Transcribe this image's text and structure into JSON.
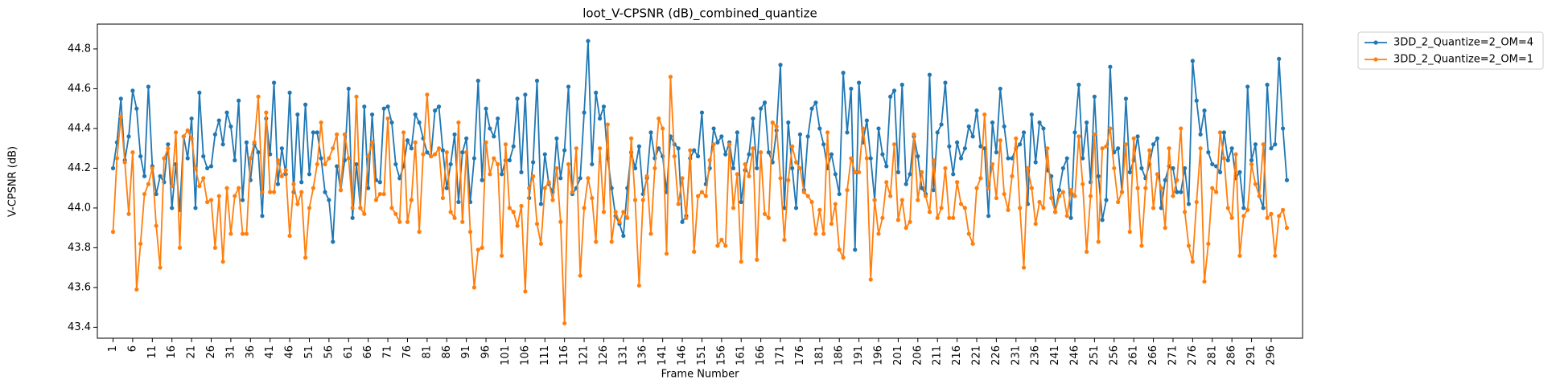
{
  "chart_data": {
    "type": "line",
    "title": "loot_V-CPSNR (dB)_combined_quantize",
    "x_label": "Frame Number",
    "y_label": "V-CPSNR (dB)",
    "legend": "outside upper right",
    "x": [
      1,
      2,
      3,
      4,
      5,
      6,
      7,
      8,
      9,
      10,
      11,
      12,
      13,
      14,
      15,
      16,
      17,
      18,
      19,
      20,
      21,
      22,
      23,
      24,
      25,
      26,
      27,
      28,
      29,
      30,
      31,
      32,
      33,
      34,
      35,
      36,
      37,
      38,
      39,
      40,
      41,
      42,
      43,
      44,
      45,
      46,
      47,
      48,
      49,
      50,
      51,
      52,
      53,
      54,
      55,
      56,
      57,
      58,
      59,
      60,
      61,
      62,
      63,
      64,
      65,
      66,
      67,
      68,
      69,
      70,
      71,
      72,
      73,
      74,
      75,
      76,
      77,
      78,
      79,
      80,
      81,
      82,
      83,
      84,
      85,
      86,
      87,
      88,
      89,
      90,
      91,
      92,
      93,
      94,
      95,
      96,
      97,
      98,
      99,
      100,
      101,
      102,
      103,
      104,
      105,
      106,
      107,
      108,
      109,
      110,
      111,
      112,
      113,
      114,
      115,
      116,
      117,
      118,
      119,
      120,
      121,
      122,
      123,
      124,
      125,
      126,
      127,
      128,
      129,
      130,
      131,
      132,
      133,
      134,
      135,
      136,
      137,
      138,
      139,
      140,
      141,
      142,
      143,
      144,
      145,
      146,
      147,
      148,
      149,
      150,
      151,
      152,
      153,
      154,
      155,
      156,
      157,
      158,
      159,
      160,
      161,
      162,
      163,
      164,
      165,
      166,
      167,
      168,
      169,
      170,
      171,
      172,
      173,
      174,
      175,
      176,
      177,
      178,
      179,
      180,
      181,
      182,
      183,
      184,
      185,
      186,
      187,
      188,
      189,
      190,
      191,
      192,
      193,
      194,
      195,
      196,
      197,
      198,
      199,
      200,
      201,
      202,
      203,
      204,
      205,
      206,
      207,
      208,
      209,
      210,
      211,
      212,
      213,
      214,
      215,
      216,
      217,
      218,
      219,
      220,
      221,
      222,
      223,
      224,
      225,
      226,
      227,
      228,
      229,
      230,
      231,
      232,
      233,
      234,
      235,
      236,
      237,
      238,
      239,
      240,
      241,
      242,
      243,
      244,
      245,
      246,
      247,
      248,
      249,
      250,
      251,
      252,
      253,
      254,
      255,
      256,
      257,
      258,
      259,
      260,
      261,
      262,
      263,
      264,
      265,
      266,
      267,
      268,
      269,
      270,
      271,
      272,
      273,
      274,
      275,
      276,
      277,
      278,
      279,
      280,
      281,
      282,
      283,
      284,
      285,
      286,
      287,
      288,
      289,
      290,
      291,
      292,
      293,
      294,
      295,
      296,
      297,
      298,
      299,
      300
    ],
    "xlim": [
      -3,
      304
    ],
    "xticks": [
      1,
      6,
      11,
      16,
      21,
      26,
      31,
      36,
      41,
      46,
      51,
      56,
      61,
      66,
      71,
      76,
      81,
      86,
      91,
      96,
      101,
      106,
      111,
      116,
      121,
      126,
      131,
      136,
      141,
      146,
      151,
      156,
      161,
      166,
      171,
      176,
      181,
      186,
      191,
      196,
      201,
      206,
      211,
      216,
      221,
      226,
      231,
      236,
      241,
      246,
      251,
      256,
      261,
      266,
      271,
      276,
      281,
      286,
      291,
      296
    ],
    "ylim": [
      43.345,
      44.925
    ],
    "yticks": [
      43.4,
      43.6,
      43.8,
      {
        "value": 44,
        "label": "44.0"
      },
      44.2,
      44.4,
      44.6,
      44.8
    ],
    "series": [
      {
        "name": "3DD_2_Quantize=2_OM=4",
        "color": "#1f77b4",
        "values": [
          44.2,
          44.33,
          44.55,
          44.24,
          44.36,
          44.59,
          44.5,
          44.26,
          44.16,
          44.61,
          44.21,
          44.07,
          44.16,
          44.13,
          44.32,
          44.0,
          44.22,
          43.99,
          44.36,
          44.25,
          44.45,
          44.0,
          44.58,
          44.26,
          44.2,
          44.21,
          44.37,
          44.44,
          44.32,
          44.48,
          44.41,
          44.24,
          44.54,
          44.04,
          44.33,
          44.14,
          44.32,
          44.28,
          43.96,
          44.45,
          44.27,
          44.63,
          44.12,
          44.3,
          44.17,
          44.58,
          44.08,
          44.47,
          44.13,
          44.52,
          44.17,
          44.38,
          44.38,
          44.25,
          44.08,
          44.04,
          43.83,
          44.21,
          44.09,
          44.24,
          44.6,
          43.95,
          44.22,
          44.0,
          44.51,
          44.1,
          44.47,
          44.14,
          44.13,
          44.5,
          44.51,
          44.43,
          44.22,
          44.15,
          44.21,
          44.34,
          44.3,
          44.47,
          44.43,
          44.35,
          44.28,
          44.26,
          44.49,
          44.51,
          44.29,
          44.1,
          44.22,
          44.37,
          44.03,
          44.28,
          44.35,
          44.03,
          44.25,
          44.64,
          44.14,
          44.5,
          44.4,
          44.36,
          44.45,
          44.17,
          44.24,
          44.24,
          44.31,
          44.55,
          44.18,
          44.57,
          44.05,
          44.23,
          44.64,
          44.02,
          44.27,
          44.12,
          44.08,
          44.35,
          44.15,
          44.29,
          44.61,
          44.07,
          44.1,
          44.15,
          44.48,
          44.84,
          44.22,
          44.58,
          44.45,
          44.51,
          44.25,
          44.1,
          43.96,
          43.92,
          43.86,
          44.1,
          44.28,
          44.2,
          44.31,
          44.07,
          44.15,
          44.38,
          44.25,
          44.3,
          44.26,
          44.08,
          44.36,
          44.32,
          44.3,
          43.93,
          43.96,
          44.25,
          44.29,
          44.26,
          44.48,
          44.12,
          44.2,
          44.4,
          44.33,
          44.36,
          44.27,
          44.33,
          44.2,
          44.38,
          44.03,
          44.19,
          44.27,
          44.45,
          44.2,
          44.5,
          44.53,
          44.28,
          44.23,
          44.39,
          44.72,
          44.0,
          44.43,
          44.2,
          44.0,
          44.37,
          44.09,
          44.36,
          44.5,
          44.53,
          44.4,
          44.32,
          44.2,
          44.27,
          44.17,
          44.07,
          44.68,
          44.38,
          44.6,
          43.79,
          44.63,
          44.33,
          44.44,
          44.25,
          44.04,
          44.4,
          44.27,
          44.21,
          44.56,
          44.59,
          44.18,
          44.62,
          44.12,
          44.17,
          44.36,
          44.26,
          44.1,
          44.07,
          44.67,
          44.09,
          44.38,
          44.42,
          44.63,
          44.31,
          44.17,
          44.33,
          44.25,
          44.3,
          44.41,
          44.36,
          44.49,
          44.31,
          44.3,
          43.96,
          44.43,
          44.28,
          44.6,
          44.41,
          44.25,
          44.25,
          44.3,
          44.32,
          44.38,
          44.02,
          44.47,
          44.23,
          44.43,
          44.4,
          44.19,
          44.16,
          43.98,
          44.09,
          44.2,
          44.25,
          43.95,
          44.38,
          44.62,
          44.25,
          44.43,
          44.13,
          44.56,
          44.16,
          43.94,
          44.04,
          44.71,
          44.28,
          44.3,
          44.08,
          44.55,
          44.18,
          44.24,
          44.36,
          44.2,
          44.15,
          44.22,
          44.32,
          44.35,
          44.0,
          44.14,
          44.21,
          44.2,
          44.08,
          44.08,
          44.2,
          44.02,
          44.74,
          44.54,
          44.37,
          44.49,
          44.28,
          44.22,
          44.21,
          44.18,
          44.38,
          44.24,
          44.3,
          44.15,
          44.18,
          44.0,
          44.61,
          44.24,
          44.32,
          44.06,
          44.0,
          44.62,
          44.3,
          44.32,
          44.75,
          44.4,
          44.14
        ]
      },
      {
        "name": "3DD_2_Quantize=2_OM=1",
        "color": "#ff7f0e",
        "values": [
          43.88,
          44.25,
          44.46,
          44.23,
          43.97,
          44.28,
          43.59,
          43.82,
          44.07,
          44.12,
          44.2,
          43.91,
          43.7,
          44.25,
          44.3,
          44.11,
          44.38,
          43.8,
          44.36,
          44.39,
          44.35,
          44.2,
          44.11,
          44.15,
          44.03,
          44.04,
          43.8,
          44.06,
          43.73,
          44.1,
          43.87,
          44.06,
          44.1,
          43.87,
          43.87,
          44.25,
          44.33,
          44.56,
          44.08,
          44.48,
          44.08,
          44.08,
          44.24,
          44.16,
          44.19,
          43.86,
          44.12,
          44.02,
          44.08,
          43.75,
          44.0,
          44.1,
          44.22,
          44.43,
          44.22,
          44.25,
          44.3,
          44.37,
          44.09,
          44.37,
          44.25,
          44.0,
          44.56,
          44.0,
          43.97,
          44.26,
          44.33,
          44.04,
          44.07,
          44.07,
          44.45,
          44.0,
          43.97,
          43.93,
          44.38,
          43.93,
          44.04,
          44.33,
          43.88,
          44.27,
          44.57,
          44.26,
          44.27,
          44.3,
          44.05,
          44.28,
          43.98,
          43.95,
          44.43,
          43.93,
          44.28,
          43.88,
          43.6,
          43.79,
          43.8,
          44.33,
          44.17,
          44.25,
          44.22,
          43.76,
          44.32,
          44.0,
          43.98,
          43.91,
          44.01,
          43.58,
          44.1,
          44.16,
          43.92,
          43.82,
          44.1,
          44.13,
          44.04,
          44.2,
          43.93,
          43.42,
          44.22,
          44.08,
          44.3,
          43.66,
          44.0,
          44.15,
          44.05,
          43.83,
          44.3,
          43.98,
          44.42,
          43.83,
          43.98,
          43.93,
          43.98,
          43.95,
          44.35,
          44.04,
          43.61,
          44.04,
          44.16,
          43.87,
          44.2,
          44.45,
          44.4,
          43.77,
          44.66,
          44.26,
          44.02,
          44.15,
          43.95,
          44.29,
          43.78,
          44.06,
          44.08,
          44.06,
          44.24,
          44.32,
          43.81,
          43.84,
          43.81,
          44.32,
          44.0,
          44.17,
          43.73,
          44.22,
          44.16,
          44.3,
          43.74,
          44.28,
          43.97,
          43.95,
          44.43,
          44.41,
          44.15,
          43.84,
          44.14,
          44.31,
          44.23,
          44.2,
          44.08,
          44.06,
          44.03,
          43.87,
          43.99,
          43.87,
          44.38,
          43.92,
          44.02,
          43.79,
          43.75,
          44.09,
          44.25,
          44.18,
          44.18,
          44.4,
          44.25,
          43.64,
          44.04,
          43.87,
          43.95,
          44.13,
          44.06,
          44.32,
          43.94,
          44.04,
          43.9,
          43.93,
          44.37,
          44.04,
          44.18,
          44.06,
          43.98,
          44.24,
          43.95,
          44.0,
          44.2,
          43.95,
          43.95,
          44.13,
          44.02,
          44.0,
          43.87,
          43.82,
          44.1,
          44.15,
          44.47,
          44.1,
          44.22,
          44.05,
          44.34,
          44.07,
          43.99,
          44.16,
          44.35,
          44.0,
          43.7,
          44.2,
          44.1,
          43.92,
          44.03,
          44.0,
          44.3,
          44.05,
          43.98,
          44.06,
          44.08,
          43.96,
          44.09,
          44.06,
          44.36,
          44.12,
          43.78,
          44.06,
          44.37,
          43.83,
          44.3,
          44.31,
          44.4,
          44.2,
          44.03,
          44.08,
          44.32,
          43.88,
          44.35,
          44.1,
          43.81,
          44.1,
          44.29,
          44.0,
          44.17,
          44.1,
          43.9,
          44.3,
          44.06,
          44.14,
          44.4,
          43.98,
          43.81,
          43.73,
          44.03,
          44.3,
          43.63,
          43.82,
          44.1,
          44.08,
          44.38,
          44.25,
          44.0,
          43.95,
          44.27,
          43.76,
          43.96,
          43.99,
          44.22,
          44.12,
          44.06,
          44.32,
          43.95,
          43.97,
          43.76,
          43.96,
          43.99,
          43.9
        ]
      }
    ]
  }
}
